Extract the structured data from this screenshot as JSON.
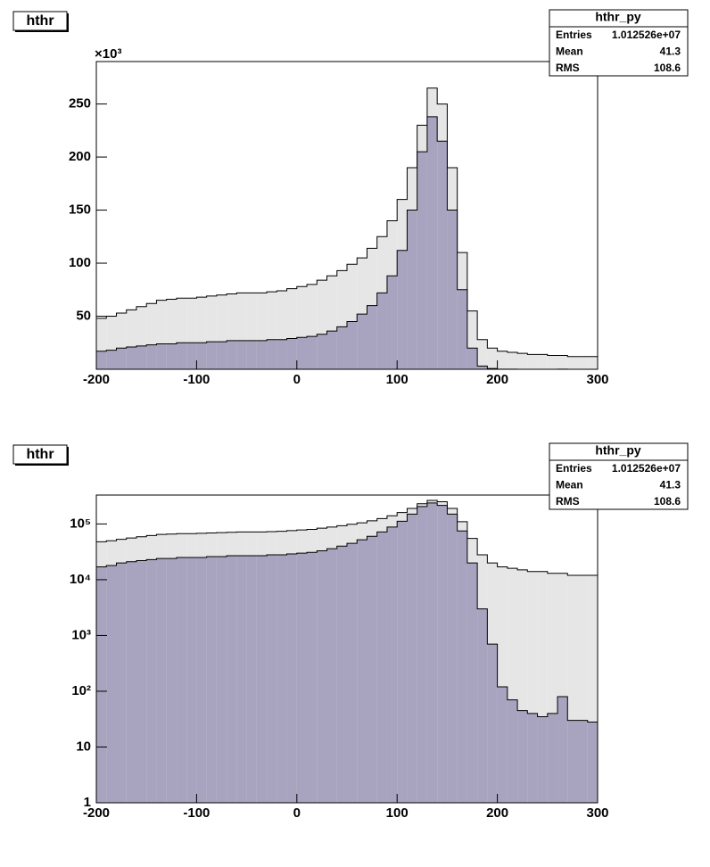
{
  "chart_data": [
    {
      "type": "histogram",
      "title": "hthr",
      "stats_title": "hthr_py",
      "stats": [
        [
          "Entries",
          "1.012526e+07"
        ],
        [
          "Mean",
          "41.3"
        ],
        [
          "RMS",
          "108.6"
        ]
      ],
      "y_exponent": "×10³",
      "log_y": false,
      "bins": [
        -200,
        -190,
        -180,
        -170,
        -160,
        -150,
        -140,
        -130,
        -120,
        -110,
        -100,
        -90,
        -80,
        -70,
        -60,
        -50,
        -40,
        -30,
        -20,
        -10,
        0,
        10,
        20,
        30,
        40,
        50,
        60,
        70,
        80,
        90,
        100,
        110,
        120,
        130,
        140,
        150,
        160,
        170,
        180,
        190,
        200,
        210,
        220,
        230,
        240,
        250,
        260,
        270,
        280,
        290,
        300
      ],
      "series": [
        {
          "color": "#e6e6e6",
          "values": [
            48000,
            50000,
            53000,
            56000,
            59000,
            62000,
            65000,
            66000,
            67000,
            67000,
            68000,
            69000,
            70000,
            71000,
            72000,
            72000,
            72000,
            73000,
            74000,
            76000,
            78000,
            80000,
            84000,
            88000,
            93000,
            99000,
            105000,
            114000,
            125000,
            140000,
            160000,
            190000,
            230000,
            265000,
            250000,
            190000,
            110000,
            55000,
            28000,
            20000,
            17000,
            16000,
            15000,
            14000,
            14000,
            13000,
            13000,
            12000,
            12000,
            12000
          ]
        },
        {
          "color": "#a8a4c0",
          "values": [
            17000,
            18000,
            20000,
            21000,
            22000,
            23000,
            24000,
            24000,
            25000,
            25000,
            25000,
            26000,
            26000,
            27000,
            27000,
            27000,
            27000,
            28000,
            28000,
            29000,
            30000,
            31000,
            33000,
            36000,
            40000,
            45000,
            52000,
            60000,
            72000,
            88000,
            112000,
            150000,
            205000,
            238000,
            215000,
            150000,
            75000,
            20000,
            3000,
            700,
            120,
            70,
            45,
            40,
            35,
            40,
            80,
            30,
            30,
            28
          ]
        }
      ],
      "xlim": [
        -200,
        300
      ],
      "xticks": [
        -200,
        -100,
        0,
        100,
        200,
        300
      ],
      "ylim": [
        0,
        290000
      ],
      "yticks": [
        {
          "value": 50000,
          "label": "50"
        },
        {
          "value": 100000,
          "label": "100"
        },
        {
          "value": 150000,
          "label": "150"
        },
        {
          "value": 200000,
          "label": "200"
        },
        {
          "value": 250000,
          "label": "250"
        }
      ]
    },
    {
      "type": "histogram",
      "title": "hthr",
      "stats_title": "hthr_py",
      "stats": [
        [
          "Entries",
          "1.012526e+07"
        ],
        [
          "Mean",
          "41.3"
        ],
        [
          "RMS",
          "108.6"
        ]
      ],
      "log_y": true,
      "bins": [
        -200,
        -190,
        -180,
        -170,
        -160,
        -150,
        -140,
        -130,
        -120,
        -110,
        -100,
        -90,
        -80,
        -70,
        -60,
        -50,
        -40,
        -30,
        -20,
        -10,
        0,
        10,
        20,
        30,
        40,
        50,
        60,
        70,
        80,
        90,
        100,
        110,
        120,
        130,
        140,
        150,
        160,
        170,
        180,
        190,
        200,
        210,
        220,
        230,
        240,
        250,
        260,
        270,
        280,
        290,
        300
      ],
      "series": [
        {
          "color": "#e6e6e6",
          "values": [
            48000,
            50000,
            53000,
            56000,
            59000,
            62000,
            65000,
            66000,
            67000,
            67000,
            68000,
            69000,
            70000,
            71000,
            72000,
            72000,
            72000,
            73000,
            74000,
            76000,
            78000,
            80000,
            84000,
            88000,
            93000,
            99000,
            105000,
            114000,
            125000,
            140000,
            160000,
            190000,
            230000,
            265000,
            250000,
            190000,
            110000,
            55000,
            28000,
            20000,
            17000,
            16000,
            15000,
            14000,
            14000,
            13000,
            13000,
            12000,
            12000,
            12000
          ]
        },
        {
          "color": "#a8a4c0",
          "values": [
            17000,
            18000,
            20000,
            21000,
            22000,
            23000,
            24000,
            24000,
            25000,
            25000,
            25000,
            26000,
            26000,
            27000,
            27000,
            27000,
            27000,
            28000,
            28000,
            29000,
            30000,
            31000,
            33000,
            36000,
            40000,
            45000,
            52000,
            60000,
            72000,
            88000,
            112000,
            150000,
            205000,
            238000,
            215000,
            150000,
            75000,
            20000,
            3000,
            700,
            120,
            70,
            45,
            40,
            35,
            40,
            80,
            30,
            30,
            28
          ]
        }
      ],
      "xlim": [
        -200,
        300
      ],
      "xticks": [
        -200,
        -100,
        0,
        100,
        200,
        300
      ],
      "ylim": [
        1,
        330000
      ],
      "yticks": [
        1,
        10,
        {
          "value": 100,
          "label": "10²"
        },
        {
          "value": 1000,
          "label": "10³"
        },
        {
          "value": 10000,
          "label": "10⁴"
        },
        {
          "value": 100000,
          "label": "10⁵"
        }
      ]
    }
  ]
}
